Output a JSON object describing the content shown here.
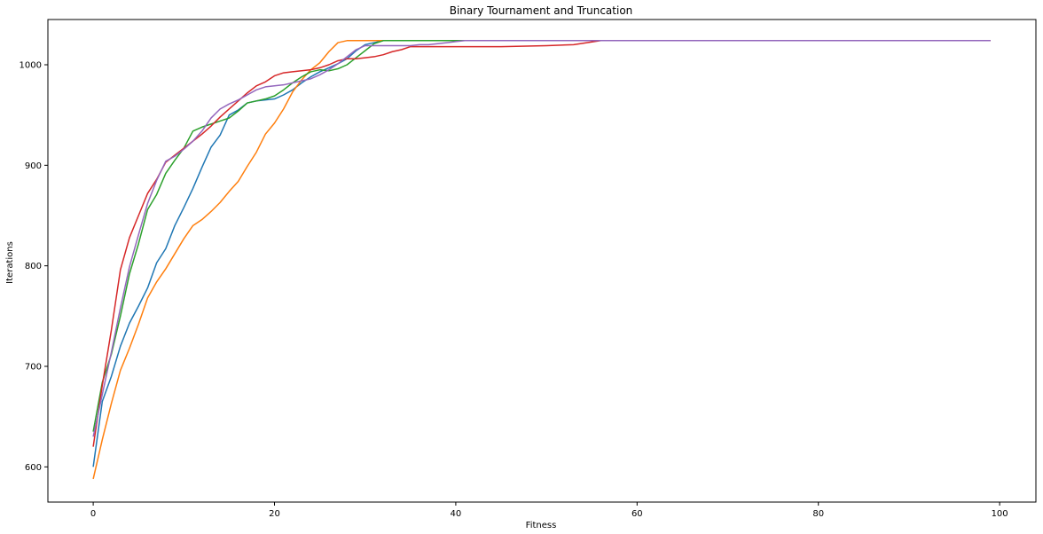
{
  "chart_data": {
    "type": "line",
    "title": "Binary Tournament and Truncation",
    "xlabel": "Fitness",
    "ylabel": "Iterations",
    "xlim": [
      -5,
      104
    ],
    "ylim": [
      565,
      1045
    ],
    "xticks": [
      0,
      20,
      40,
      60,
      80,
      100
    ],
    "yticks": [
      600,
      700,
      800,
      900,
      1000
    ],
    "grid": false,
    "series": [
      {
        "color": "#1f77b4",
        "points": [
          [
            0,
            600
          ],
          [
            1,
            665
          ],
          [
            2,
            690
          ],
          [
            3,
            720
          ],
          [
            4,
            743
          ],
          [
            5,
            760
          ],
          [
            6,
            778
          ],
          [
            7,
            803
          ],
          [
            8,
            817
          ],
          [
            9,
            840
          ],
          [
            10,
            858
          ],
          [
            11,
            877
          ],
          [
            12,
            898
          ],
          [
            13,
            918
          ],
          [
            14,
            930
          ],
          [
            15,
            950
          ],
          [
            16,
            955
          ],
          [
            17,
            962
          ],
          [
            18,
            964
          ],
          [
            19,
            965
          ],
          [
            20,
            966
          ],
          [
            21,
            970
          ],
          [
            22,
            975
          ],
          [
            23,
            982
          ],
          [
            24,
            988
          ],
          [
            25,
            993
          ],
          [
            26,
            997
          ],
          [
            27,
            1001
          ],
          [
            28,
            1006
          ],
          [
            29,
            1014
          ],
          [
            30,
            1020
          ],
          [
            31,
            1022
          ],
          [
            32,
            1024
          ],
          [
            40,
            1024
          ],
          [
            60,
            1024
          ],
          [
            99,
            1024
          ]
        ]
      },
      {
        "color": "#ff7f0e",
        "points": [
          [
            0,
            588
          ],
          [
            1,
            627
          ],
          [
            2,
            663
          ],
          [
            3,
            696
          ],
          [
            4,
            718
          ],
          [
            5,
            742
          ],
          [
            6,
            768
          ],
          [
            7,
            784
          ],
          [
            8,
            797
          ],
          [
            9,
            812
          ],
          [
            10,
            827
          ],
          [
            11,
            840
          ],
          [
            12,
            846
          ],
          [
            13,
            854
          ],
          [
            14,
            863
          ],
          [
            15,
            874
          ],
          [
            16,
            884
          ],
          [
            17,
            899
          ],
          [
            18,
            913
          ],
          [
            19,
            931
          ],
          [
            20,
            942
          ],
          [
            21,
            956
          ],
          [
            22,
            973
          ],
          [
            23,
            985
          ],
          [
            24,
            995
          ],
          [
            25,
            1002
          ],
          [
            26,
            1013
          ],
          [
            27,
            1022
          ],
          [
            28,
            1024
          ],
          [
            40,
            1024
          ],
          [
            60,
            1024
          ],
          [
            99,
            1024
          ]
        ]
      },
      {
        "color": "#2ca02c",
        "points": [
          [
            0,
            635
          ],
          [
            1,
            684
          ],
          [
            2,
            712
          ],
          [
            3,
            750
          ],
          [
            4,
            792
          ],
          [
            5,
            822
          ],
          [
            6,
            856
          ],
          [
            7,
            871
          ],
          [
            8,
            892
          ],
          [
            9,
            905
          ],
          [
            10,
            917
          ],
          [
            11,
            934
          ],
          [
            12,
            938
          ],
          [
            13,
            941
          ],
          [
            14,
            944
          ],
          [
            15,
            947
          ],
          [
            16,
            954
          ],
          [
            17,
            962
          ],
          [
            18,
            964
          ],
          [
            19,
            966
          ],
          [
            20,
            969
          ],
          [
            21,
            975
          ],
          [
            22,
            982
          ],
          [
            23,
            988
          ],
          [
            24,
            993
          ],
          [
            25,
            995
          ],
          [
            26,
            994
          ],
          [
            27,
            996
          ],
          [
            28,
            1000
          ],
          [
            29,
            1007
          ],
          [
            30,
            1014
          ],
          [
            31,
            1021
          ],
          [
            32,
            1024
          ],
          [
            40,
            1024
          ],
          [
            60,
            1024
          ],
          [
            99,
            1024
          ]
        ]
      },
      {
        "color": "#d62728",
        "points": [
          [
            0,
            620
          ],
          [
            1,
            681
          ],
          [
            2,
            736
          ],
          [
            3,
            796
          ],
          [
            4,
            828
          ],
          [
            5,
            850
          ],
          [
            6,
            872
          ],
          [
            7,
            886
          ],
          [
            8,
            903
          ],
          [
            9,
            910
          ],
          [
            10,
            917
          ],
          [
            11,
            924
          ],
          [
            12,
            931
          ],
          [
            13,
            939
          ],
          [
            14,
            948
          ],
          [
            15,
            956
          ],
          [
            16,
            964
          ],
          [
            17,
            972
          ],
          [
            18,
            979
          ],
          [
            19,
            983
          ],
          [
            20,
            989
          ],
          [
            21,
            992
          ],
          [
            22,
            993
          ],
          [
            23,
            994
          ],
          [
            24,
            995
          ],
          [
            25,
            997
          ],
          [
            26,
            1000
          ],
          [
            27,
            1004
          ],
          [
            28,
            1006
          ],
          [
            29,
            1006
          ],
          [
            30,
            1007
          ],
          [
            31,
            1008
          ],
          [
            32,
            1010
          ],
          [
            33,
            1013
          ],
          [
            34,
            1015
          ],
          [
            35,
            1018
          ],
          [
            40,
            1018
          ],
          [
            45,
            1018
          ],
          [
            50,
            1019
          ],
          [
            53,
            1020
          ],
          [
            56,
            1024
          ],
          [
            60,
            1024
          ],
          [
            99,
            1024
          ]
        ]
      },
      {
        "color": "#9467bd",
        "points": [
          [
            0,
            630
          ],
          [
            1,
            672
          ],
          [
            2,
            714
          ],
          [
            3,
            758
          ],
          [
            4,
            799
          ],
          [
            5,
            831
          ],
          [
            6,
            862
          ],
          [
            7,
            885
          ],
          [
            8,
            904
          ],
          [
            9,
            909
          ],
          [
            10,
            916
          ],
          [
            11,
            924
          ],
          [
            12,
            934
          ],
          [
            13,
            947
          ],
          [
            14,
            956
          ],
          [
            15,
            961
          ],
          [
            16,
            965
          ],
          [
            17,
            970
          ],
          [
            18,
            975
          ],
          [
            19,
            978
          ],
          [
            20,
            979
          ],
          [
            21,
            980
          ],
          [
            22,
            982
          ],
          [
            23,
            984
          ],
          [
            24,
            986
          ],
          [
            25,
            990
          ],
          [
            26,
            995
          ],
          [
            27,
            1001
          ],
          [
            28,
            1008
          ],
          [
            29,
            1015
          ],
          [
            30,
            1019
          ],
          [
            31,
            1019
          ],
          [
            32,
            1019
          ],
          [
            33,
            1019
          ],
          [
            34,
            1019
          ],
          [
            35,
            1019
          ],
          [
            36,
            1020
          ],
          [
            37,
            1020
          ],
          [
            38,
            1021
          ],
          [
            39,
            1022
          ],
          [
            40,
            1023
          ],
          [
            41,
            1024
          ],
          [
            60,
            1024
          ],
          [
            99,
            1024
          ]
        ]
      }
    ]
  }
}
